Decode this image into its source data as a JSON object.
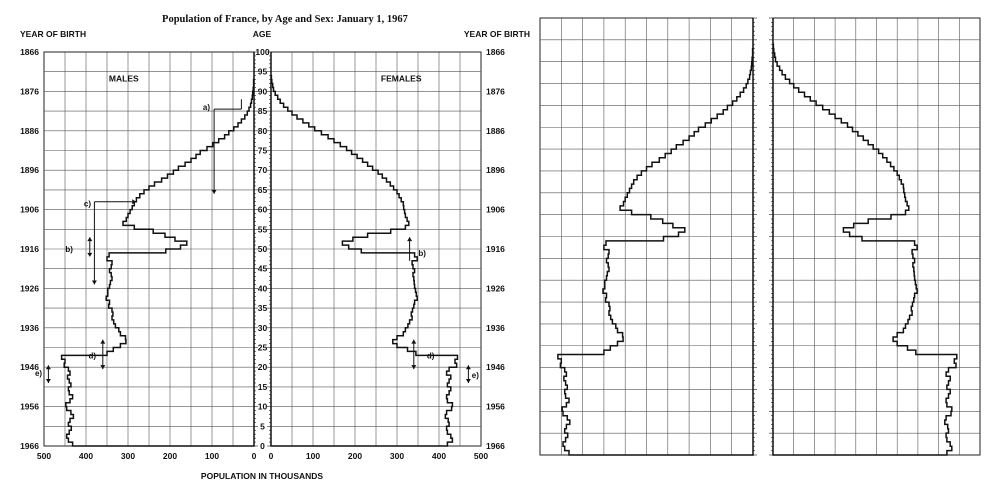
{
  "chart_data": [
    {
      "type": "bar",
      "orientation": "horizontal",
      "subtype": "population-pyramid",
      "title": "Population of France, by Age and Sex: January 1, 1967",
      "xlabel": "POPULATION IN THOUSANDS",
      "age_axis_label": "AGE",
      "year_axis_label": "YEAR OF BIRTH",
      "xlim": [
        0,
        500
      ],
      "ylim": [
        0,
        100
      ],
      "x_ticks": [
        "500",
        "400",
        "300",
        "200",
        "100",
        "0"
      ],
      "x_ticks_right": [
        "0",
        "100",
        "200",
        "300",
        "400",
        "500"
      ],
      "age_ticks": [
        "0",
        "5",
        "10",
        "15",
        "20",
        "25",
        "30",
        "35",
        "40",
        "45",
        "50",
        "55",
        "60",
        "65",
        "70",
        "75",
        "80",
        "85",
        "90",
        "95",
        "100"
      ],
      "year_ticks": [
        "1966",
        "1956",
        "1946",
        "1936",
        "1926",
        "1916",
        "1906",
        "1896",
        "1886",
        "1876",
        "1866"
      ],
      "panel_labels": {
        "males": "MALES",
        "females": "FEMALES"
      },
      "annotations": [
        "a)",
        "b)",
        "c)",
        "d)",
        "e)",
        "b)",
        "d)",
        "e)"
      ],
      "series": [
        {
          "name": "MALES",
          "ages": [
            0,
            1,
            2,
            3,
            4,
            5,
            6,
            7,
            8,
            9,
            10,
            11,
            12,
            13,
            14,
            15,
            16,
            17,
            18,
            19,
            20,
            21,
            22,
            23,
            24,
            25,
            26,
            27,
            28,
            29,
            30,
            31,
            32,
            33,
            34,
            35,
            36,
            37,
            38,
            39,
            40,
            41,
            42,
            43,
            44,
            45,
            46,
            47,
            48,
            49,
            50,
            51,
            52,
            53,
            54,
            55,
            56,
            57,
            58,
            59,
            60,
            61,
            62,
            63,
            64,
            65,
            66,
            67,
            68,
            69,
            70,
            71,
            72,
            73,
            74,
            75,
            76,
            77,
            78,
            79,
            80,
            81,
            82,
            83,
            84,
            85,
            86,
            87,
            88,
            89,
            90,
            91,
            92,
            93,
            94,
            95,
            96,
            97,
            98,
            99
          ],
          "values": [
            432,
            442,
            446,
            440,
            435,
            442,
            438,
            430,
            436,
            446,
            448,
            438,
            432,
            440,
            442,
            436,
            440,
            444,
            438,
            442,
            452,
            450,
            458,
            350,
            335,
            318,
            305,
            306,
            318,
            322,
            330,
            334,
            338,
            336,
            338,
            346,
            344,
            352,
            348,
            348,
            344,
            342,
            338,
            340,
            344,
            340,
            338,
            350,
            345,
            210,
            175,
            160,
            188,
            212,
            240,
            285,
            312,
            304,
            300,
            295,
            290,
            285,
            280,
            272,
            262,
            250,
            237,
            220,
            206,
            192,
            180,
            164,
            150,
            138,
            128,
            112,
            98,
            84,
            70,
            60,
            48,
            38,
            30,
            22,
            16,
            12,
            8,
            6,
            4,
            3,
            2,
            1,
            1,
            0,
            0,
            0,
            0,
            0,
            0,
            0
          ]
        },
        {
          "name": "FEMALES",
          "ages": [
            0,
            1,
            2,
            3,
            4,
            5,
            6,
            7,
            8,
            9,
            10,
            11,
            12,
            13,
            14,
            15,
            16,
            17,
            18,
            19,
            20,
            21,
            22,
            23,
            24,
            25,
            26,
            27,
            28,
            29,
            30,
            31,
            32,
            33,
            34,
            35,
            36,
            37,
            38,
            39,
            40,
            41,
            42,
            43,
            44,
            45,
            46,
            47,
            48,
            49,
            50,
            51,
            52,
            53,
            54,
            55,
            56,
            57,
            58,
            59,
            60,
            61,
            62,
            63,
            64,
            65,
            66,
            67,
            68,
            69,
            70,
            71,
            72,
            73,
            74,
            75,
            76,
            77,
            78,
            79,
            80,
            81,
            82,
            83,
            84,
            85,
            86,
            87,
            88,
            89,
            90,
            91,
            92,
            93,
            94,
            95,
            96,
            97,
            98,
            99
          ],
          "values": [
            420,
            432,
            428,
            420,
            418,
            424,
            422,
            415,
            418,
            430,
            432,
            420,
            418,
            424,
            428,
            420,
            424,
            428,
            418,
            424,
            442,
            438,
            444,
            345,
            325,
            300,
            290,
            300,
            315,
            320,
            326,
            330,
            336,
            334,
            337,
            340,
            342,
            348,
            346,
            344,
            342,
            341,
            340,
            338,
            342,
            338,
            336,
            348,
            342,
            215,
            185,
            170,
            195,
            230,
            285,
            320,
            328,
            324,
            320,
            318,
            316,
            315,
            310,
            305,
            300,
            292,
            284,
            275,
            265,
            255,
            242,
            230,
            218,
            205,
            192,
            180,
            165,
            150,
            136,
            120,
            104,
            90,
            76,
            62,
            50,
            40,
            30,
            22,
            16,
            10,
            6,
            4,
            2,
            1,
            0,
            0,
            0,
            0,
            0,
            0
          ]
        }
      ]
    },
    {
      "type": "bar",
      "orientation": "horizontal",
      "subtype": "population-pyramid",
      "note": "Second pyramid shown without labels; same shape as the first.",
      "xlim": [
        0,
        500
      ],
      "ylim": [
        0,
        100
      ],
      "series": [
        {
          "side": "left",
          "values": [
            432,
            442,
            446,
            440,
            435,
            442,
            438,
            430,
            436,
            446,
            448,
            438,
            432,
            440,
            442,
            436,
            440,
            444,
            438,
            442,
            452,
            450,
            458,
            350,
            335,
            318,
            305,
            306,
            318,
            322,
            330,
            334,
            338,
            336,
            338,
            346,
            344,
            352,
            348,
            348,
            344,
            342,
            338,
            340,
            344,
            340,
            338,
            350,
            345,
            210,
            175,
            160,
            188,
            212,
            240,
            285,
            312,
            304,
            300,
            295,
            290,
            285,
            280,
            272,
            262,
            250,
            237,
            220,
            206,
            192,
            180,
            164,
            150,
            138,
            128,
            112,
            98,
            84,
            70,
            60,
            48,
            38,
            30,
            22,
            16,
            12,
            8,
            6,
            4,
            3,
            2,
            1,
            1,
            0,
            0,
            0,
            0,
            0,
            0,
            0
          ]
        },
        {
          "side": "right",
          "values": [
            420,
            432,
            428,
            420,
            418,
            424,
            422,
            415,
            418,
            430,
            432,
            420,
            418,
            424,
            428,
            420,
            424,
            428,
            418,
            424,
            442,
            438,
            444,
            345,
            325,
            300,
            290,
            300,
            315,
            320,
            326,
            330,
            336,
            334,
            337,
            340,
            342,
            348,
            346,
            344,
            342,
            341,
            340,
            338,
            342,
            338,
            336,
            348,
            342,
            215,
            185,
            170,
            195,
            230,
            285,
            320,
            328,
            324,
            320,
            318,
            316,
            315,
            310,
            305,
            300,
            292,
            284,
            275,
            265,
            255,
            242,
            230,
            218,
            205,
            192,
            180,
            165,
            150,
            136,
            120,
            104,
            90,
            76,
            62,
            50,
            40,
            30,
            22,
            16,
            10,
            6,
            4,
            2,
            1,
            0,
            0,
            0,
            0,
            0,
            0
          ]
        }
      ]
    }
  ]
}
